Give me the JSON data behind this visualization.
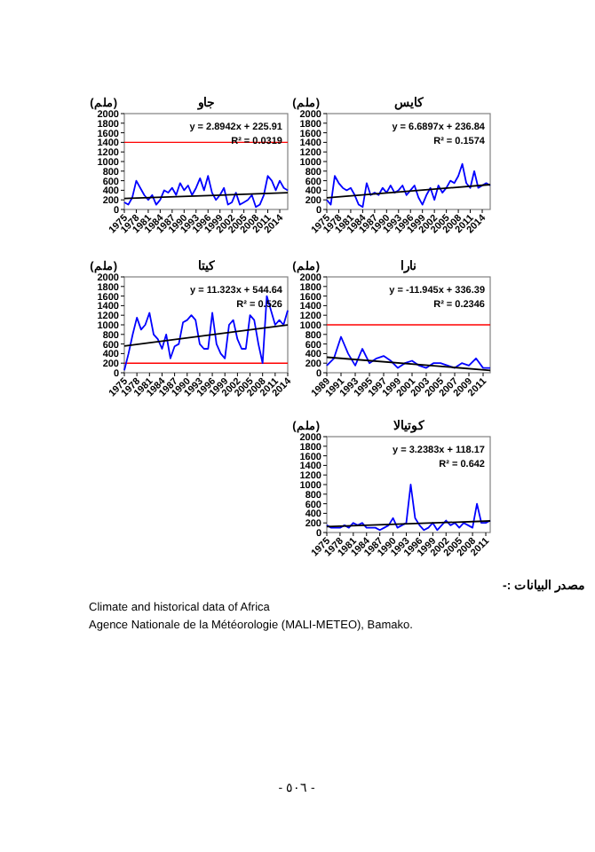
{
  "chart_data": [
    {
      "type": "line",
      "title": "جاو",
      "ylabel": "(ملم)",
      "grid": false,
      "marker": "none",
      "x": [
        1975,
        1976,
        1977,
        1978,
        1979,
        1980,
        1981,
        1982,
        1983,
        1984,
        1985,
        1986,
        1987,
        1988,
        1989,
        1990,
        1991,
        1992,
        1993,
        1994,
        1995,
        1996,
        1997,
        1998,
        1999,
        2000,
        2001,
        2002,
        2003,
        2004,
        2005,
        2006,
        2007,
        2008,
        2009,
        2010,
        2011,
        2012,
        2013,
        2014,
        2015,
        2016
      ],
      "series": [
        {
          "color": "#0000ff",
          "values": [
            150,
            100,
            250,
            600,
            450,
            300,
            200,
            300,
            100,
            200,
            400,
            350,
            450,
            300,
            550,
            400,
            500,
            300,
            450,
            650,
            400,
            700,
            350,
            200,
            300,
            450,
            100,
            150,
            350,
            100,
            150,
            200,
            300,
            50,
            100,
            300,
            700,
            600,
            400,
            600,
            450,
            400
          ]
        },
        {
          "type": "line",
          "color": "#000000",
          "x": [
            1975,
            2016
          ],
          "values": [
            229,
            348
          ]
        }
      ],
      "ref_lines": [
        {
          "axis": "y",
          "value": 1400,
          "color": "#ff0000"
        }
      ],
      "xlim": [
        1975,
        2016
      ],
      "xticks": [
        1975,
        1978,
        1981,
        1984,
        1987,
        1990,
        1993,
        1996,
        1999,
        2002,
        2005,
        2008,
        2011,
        2014
      ],
      "ylim": [
        0,
        2000
      ],
      "yticks": [
        0,
        200,
        400,
        600,
        800,
        1000,
        1200,
        1400,
        1600,
        1800,
        2000
      ],
      "annotations": [
        "y = 2.8942x + 225.91",
        "R² = 0.0319"
      ]
    },
    {
      "type": "line",
      "title": "كايس",
      "ylabel": "(ملم)",
      "grid": false,
      "marker": "none",
      "x": [
        1975,
        1976,
        1977,
        1978,
        1979,
        1980,
        1981,
        1982,
        1983,
        1984,
        1985,
        1986,
        1987,
        1988,
        1989,
        1990,
        1991,
        1992,
        1993,
        1994,
        1995,
        1996,
        1997,
        1998,
        1999,
        2000,
        2001,
        2002,
        2003,
        2004,
        2005,
        2006,
        2007,
        2008,
        2009,
        2010,
        2011,
        2012,
        2013,
        2014,
        2015,
        2016
      ],
      "series": [
        {
          "color": "#0000ff",
          "values": [
            200,
            100,
            700,
            550,
            450,
            400,
            450,
            300,
            100,
            50,
            550,
            300,
            350,
            300,
            450,
            350,
            500,
            350,
            400,
            500,
            300,
            400,
            500,
            250,
            100,
            300,
            450,
            200,
            500,
            350,
            450,
            600,
            550,
            700,
            950,
            550,
            450,
            800,
            450,
            500,
            550,
            500
          ]
        },
        {
          "type": "line",
          "color": "#000000",
          "x": [
            1975,
            2016
          ],
          "values": [
            244,
            518
          ]
        }
      ],
      "xlim": [
        1975,
        2016
      ],
      "xticks": [
        1975,
        1978,
        1981,
        1984,
        1987,
        1990,
        1993,
        1996,
        1999,
        2002,
        2005,
        2008,
        2011,
        2014
      ],
      "ylim": [
        0,
        2000
      ],
      "yticks": [
        0,
        200,
        400,
        600,
        800,
        1000,
        1200,
        1400,
        1600,
        1800,
        2000
      ],
      "annotations": [
        "y = 6.6897x + 236.84",
        "R² = 0.1574"
      ]
    },
    {
      "type": "line",
      "title": "كيتا",
      "ylabel": "(ملم)",
      "grid": false,
      "marker": "none",
      "x": [
        1975,
        1976,
        1977,
        1978,
        1979,
        1980,
        1981,
        1982,
        1983,
        1984,
        1985,
        1986,
        1987,
        1988,
        1989,
        1990,
        1991,
        1992,
        1993,
        1994,
        1995,
        1996,
        1997,
        1998,
        1999,
        2000,
        2001,
        2002,
        2003,
        2004,
        2005,
        2006,
        2007,
        2008,
        2009,
        2010,
        2011,
        2012,
        2013,
        2014
      ],
      "series": [
        {
          "color": "#0000ff",
          "values": [
            50,
            400,
            800,
            1150,
            900,
            1000,
            1250,
            800,
            700,
            500,
            800,
            300,
            550,
            600,
            1050,
            1100,
            1200,
            1100,
            600,
            500,
            500,
            1250,
            600,
            400,
            300,
            1000,
            1100,
            700,
            500,
            500,
            1200,
            1100,
            600,
            200,
            1600,
            1300,
            1000,
            1100,
            1000,
            1300
          ]
        },
        {
          "type": "line",
          "color": "#000000",
          "x": [
            1975,
            2014
          ],
          "values": [
            556,
            998
          ]
        }
      ],
      "ref_lines": [
        {
          "axis": "y",
          "value": 200,
          "color": "#ff0000"
        }
      ],
      "xlim": [
        1975,
        2014
      ],
      "xticks": [
        1975,
        1978,
        1981,
        1984,
        1987,
        1990,
        1993,
        1996,
        1999,
        2002,
        2005,
        2008,
        2011,
        2014
      ],
      "ylim": [
        0,
        2000
      ],
      "yticks": [
        0,
        200,
        400,
        600,
        800,
        1000,
        1200,
        1400,
        1600,
        1800,
        2000
      ],
      "annotations": [
        "y = 11.323x + 544.64",
        "R² = 0.526"
      ]
    },
    {
      "type": "line",
      "title": "نارا",
      "ylabel": "(ملم)",
      "grid": false,
      "marker": "none",
      "x": [
        1989,
        1990,
        1991,
        1992,
        1993,
        1994,
        1995,
        1996,
        1997,
        1998,
        1999,
        2000,
        2001,
        2002,
        2003,
        2004,
        2005,
        2006,
        2007,
        2008,
        2009,
        2010,
        2011,
        2012
      ],
      "series": [
        {
          "color": "#0000ff",
          "values": [
            150,
            300,
            750,
            400,
            150,
            500,
            200,
            300,
            350,
            250,
            100,
            200,
            250,
            150,
            100,
            200,
            200,
            150,
            100,
            200,
            150,
            300,
            100,
            100
          ]
        },
        {
          "type": "line",
          "color": "#000000",
          "x": [
            1989,
            2012
          ],
          "values": [
            324,
            50
          ]
        }
      ],
      "ref_lines": [
        {
          "axis": "y",
          "value": 1000,
          "color": "#ff0000"
        }
      ],
      "xlim": [
        1989,
        2012
      ],
      "xticks": [
        1989,
        1991,
        1993,
        1995,
        1997,
        1999,
        2001,
        2003,
        2005,
        2007,
        2009,
        2011
      ],
      "ylim": [
        0,
        2000
      ],
      "yticks": [
        0,
        200,
        400,
        600,
        800,
        1000,
        1200,
        1400,
        1600,
        1800,
        2000
      ],
      "annotations": [
        "y = -11.945x + 336.39",
        "R² = 0.2346"
      ]
    },
    {
      "type": "line",
      "title": "كوتيالا",
      "ylabel": "(ملم)",
      "grid": false,
      "marker": "none",
      "x": [
        1975,
        1976,
        1977,
        1978,
        1979,
        1980,
        1981,
        1982,
        1983,
        1984,
        1985,
        1986,
        1987,
        1988,
        1989,
        1990,
        1991,
        1992,
        1993,
        1994,
        1995,
        1996,
        1997,
        1998,
        1999,
        2000,
        2001,
        2002,
        2003,
        2004,
        2005,
        2006,
        2007,
        2008,
        2009,
        2010,
        2011,
        2012
      ],
      "series": [
        {
          "color": "#0000ff",
          "values": [
            150,
            100,
            100,
            100,
            150,
            100,
            200,
            150,
            200,
            100,
            100,
            100,
            50,
            100,
            150,
            300,
            100,
            150,
            200,
            1000,
            300,
            150,
            50,
            100,
            200,
            50,
            150,
            250,
            150,
            200,
            100,
            200,
            150,
            100,
            600,
            200,
            200,
            250
          ]
        },
        {
          "type": "line",
          "color": "#000000",
          "x": [
            1975,
            2012
          ],
          "values": [
            121,
            241
          ]
        }
      ],
      "xlim": [
        1975,
        2012
      ],
      "xticks": [
        1975,
        1978,
        1981,
        1984,
        1987,
        1990,
        1993,
        1996,
        1999,
        2002,
        2005,
        2008,
        2011
      ],
      "ylim": [
        0,
        2000
      ],
      "yticks": [
        0,
        200,
        400,
        600,
        800,
        1000,
        1200,
        1400,
        1600,
        1800,
        2000
      ],
      "annotations": [
        "y = 3.2383x + 118.17",
        "R² = 0.642",
        "مصدر البيانات :-",
        "Climate and historical data of Africa",
        "Agence Nationale de la Météorologie (MALI-METEO), Bamako.",
        "- ٥٠٦ -"
      ]
    }
  ]
}
